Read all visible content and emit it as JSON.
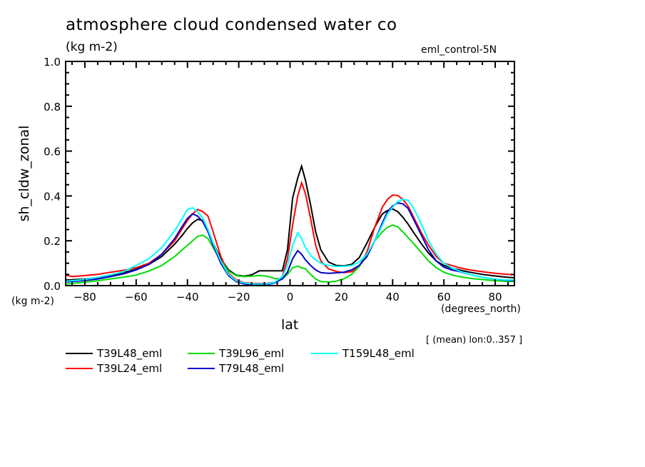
{
  "chart_data": {
    "type": "line",
    "title": "atmosphere cloud condensed water co",
    "units_label": "(kg m-2)",
    "dataset_label": "eml_control-5N",
    "xlabel": "lat",
    "xunits": "(degrees_north)",
    "ylabel": "sh_cldw_zonal",
    "yunits": "(kg m-2)",
    "subset_note": "[ (mean) lon:0..357 ]",
    "xlim": [
      -87.5,
      87.5
    ],
    "ylim": [
      0.0,
      1.0
    ],
    "xticks": [
      -80,
      -60,
      -40,
      -20,
      0,
      20,
      40,
      60,
      80
    ],
    "xtick_labels": [
      "-80",
      "-60",
      "-40",
      "-20",
      "0",
      "20",
      "40",
      "60",
      "80"
    ],
    "yticks": [
      0.0,
      0.2,
      0.4,
      0.6,
      0.8,
      1.0
    ],
    "ytick_labels": [
      "0.0",
      "0.2",
      "0.4",
      "0.6",
      "0.8",
      "1.0"
    ],
    "grid": false,
    "legend_position": "bottom",
    "x": [
      -87.5,
      -85,
      -80,
      -75,
      -70,
      -65,
      -60,
      -55,
      -50,
      -45,
      -42,
      -40,
      -38,
      -36,
      -34,
      -32,
      -30,
      -27,
      -24,
      -21,
      -18,
      -15,
      -12,
      -9,
      -6,
      -3,
      -1,
      1,
      3,
      4.5,
      6,
      8,
      10,
      12,
      15,
      18,
      21,
      24,
      27,
      30,
      33,
      36,
      38,
      40,
      42,
      44,
      46,
      48,
      51,
      54,
      57,
      60,
      63,
      66,
      70,
      75,
      80,
      85,
      87.5
    ],
    "series": [
      {
        "name": "T39L48_eml",
        "color": "#000000",
        "values": [
          0.025,
          0.026,
          0.03,
          0.035,
          0.045,
          0.058,
          0.073,
          0.095,
          0.13,
          0.185,
          0.225,
          0.255,
          0.28,
          0.296,
          0.29,
          0.25,
          0.19,
          0.12,
          0.07,
          0.047,
          0.042,
          0.048,
          0.066,
          0.066,
          0.066,
          0.066,
          0.16,
          0.39,
          0.48,
          0.533,
          0.47,
          0.36,
          0.24,
          0.16,
          0.105,
          0.09,
          0.088,
          0.095,
          0.125,
          0.19,
          0.26,
          0.32,
          0.335,
          0.342,
          0.33,
          0.305,
          0.275,
          0.24,
          0.19,
          0.145,
          0.11,
          0.09,
          0.078,
          0.07,
          0.06,
          0.05,
          0.043,
          0.037,
          0.035
        ]
      },
      {
        "name": "T39L24_eml",
        "color": "#ff0000",
        "values": [
          0.047,
          0.04,
          0.045,
          0.05,
          0.06,
          0.068,
          0.08,
          0.1,
          0.14,
          0.2,
          0.255,
          0.29,
          0.32,
          0.34,
          0.33,
          0.31,
          0.24,
          0.13,
          0.055,
          0.025,
          0.014,
          0.01,
          0.01,
          0.01,
          0.015,
          0.04,
          0.12,
          0.27,
          0.4,
          0.459,
          0.41,
          0.3,
          0.18,
          0.11,
          0.075,
          0.063,
          0.058,
          0.062,
          0.085,
          0.15,
          0.26,
          0.35,
          0.385,
          0.404,
          0.402,
          0.385,
          0.355,
          0.31,
          0.24,
          0.18,
          0.13,
          0.1,
          0.09,
          0.08,
          0.07,
          0.062,
          0.055,
          0.05,
          0.048
        ]
      },
      {
        "name": "T39L96_eml",
        "color": "#00dd00",
        "values": [
          0.007,
          0.01,
          0.015,
          0.022,
          0.03,
          0.038,
          0.047,
          0.065,
          0.09,
          0.13,
          0.16,
          0.18,
          0.2,
          0.22,
          0.225,
          0.21,
          0.17,
          0.11,
          0.065,
          0.045,
          0.04,
          0.042,
          0.045,
          0.042,
          0.032,
          0.03,
          0.05,
          0.08,
          0.087,
          0.08,
          0.075,
          0.05,
          0.03,
          0.018,
          0.016,
          0.02,
          0.03,
          0.05,
          0.085,
          0.14,
          0.2,
          0.24,
          0.26,
          0.27,
          0.262,
          0.24,
          0.215,
          0.19,
          0.15,
          0.11,
          0.08,
          0.06,
          0.048,
          0.04,
          0.033,
          0.027,
          0.022,
          0.019,
          0.018
        ]
      },
      {
        "name": "T79L48_eml",
        "color": "#0000cc",
        "values": [
          0.017,
          0.018,
          0.023,
          0.03,
          0.04,
          0.052,
          0.07,
          0.095,
          0.14,
          0.21,
          0.265,
          0.3,
          0.32,
          0.31,
          0.285,
          0.24,
          0.18,
          0.1,
          0.045,
          0.018,
          0.008,
          0.004,
          0.004,
          0.005,
          0.012,
          0.03,
          0.06,
          0.12,
          0.156,
          0.14,
          0.115,
          0.09,
          0.07,
          0.058,
          0.055,
          0.057,
          0.06,
          0.07,
          0.09,
          0.13,
          0.2,
          0.28,
          0.33,
          0.355,
          0.369,
          0.365,
          0.345,
          0.3,
          0.23,
          0.16,
          0.11,
          0.082,
          0.07,
          0.063,
          0.05,
          0.037,
          0.028,
          0.023,
          0.022
        ]
      },
      {
        "name": "T159L48_eml",
        "color": "#00ffff",
        "values": [
          0.02,
          0.022,
          0.028,
          0.037,
          0.048,
          0.062,
          0.09,
          0.12,
          0.17,
          0.245,
          0.3,
          0.34,
          0.347,
          0.33,
          0.3,
          0.25,
          0.19,
          0.11,
          0.05,
          0.022,
          0.012,
          0.008,
          0.008,
          0.008,
          0.015,
          0.04,
          0.09,
          0.18,
          0.236,
          0.21,
          0.17,
          0.135,
          0.115,
          0.1,
          0.09,
          0.086,
          0.086,
          0.09,
          0.105,
          0.14,
          0.2,
          0.27,
          0.32,
          0.35,
          0.375,
          0.385,
          0.38,
          0.35,
          0.28,
          0.2,
          0.14,
          0.1,
          0.08,
          0.065,
          0.05,
          0.037,
          0.028,
          0.025,
          0.025
        ]
      }
    ]
  },
  "legend_rows": [
    [
      0,
      2,
      4
    ],
    [
      1,
      3
    ]
  ]
}
